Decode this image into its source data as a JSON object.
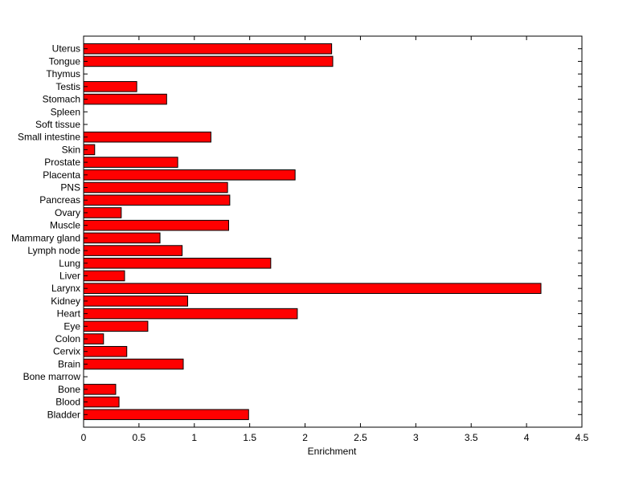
{
  "chart_data": {
    "type": "bar",
    "orientation": "horizontal",
    "title": "",
    "xlabel": "Enrichment",
    "ylabel": "",
    "xlim": [
      0,
      4.5
    ],
    "xticks": [
      "0",
      "0.5",
      "1",
      "1.5",
      "2",
      "2.5",
      "3",
      "3.5",
      "4",
      "4.5"
    ],
    "grid": false,
    "legend": false,
    "bar_color": "#ff0000",
    "edge_color": "#000000",
    "categories": [
      "Bladder",
      "Blood",
      "Bone",
      "Bone marrow",
      "Brain",
      "Cervix",
      "Colon",
      "Eye",
      "Heart",
      "Kidney",
      "Larynx",
      "Liver",
      "Lung",
      "Lymph node",
      "Mammary gland",
      "Muscle",
      "Ovary",
      "Pancreas",
      "PNS",
      "Placenta",
      "Prostate",
      "Skin",
      "Small intestine",
      "Soft tissue",
      "Spleen",
      "Stomach",
      "Testis",
      "Thymus",
      "Tongue",
      "Uterus"
    ],
    "values": [
      1.49,
      0.32,
      0.29,
      0,
      0.9,
      0.39,
      0.18,
      0.58,
      1.93,
      0.94,
      4.13,
      0.37,
      1.69,
      0.89,
      0.69,
      1.31,
      0.34,
      1.32,
      1.3,
      1.91,
      0.85,
      0.1,
      1.15,
      0,
      0,
      0.75,
      0.48,
      0,
      2.25,
      2.24
    ]
  }
}
